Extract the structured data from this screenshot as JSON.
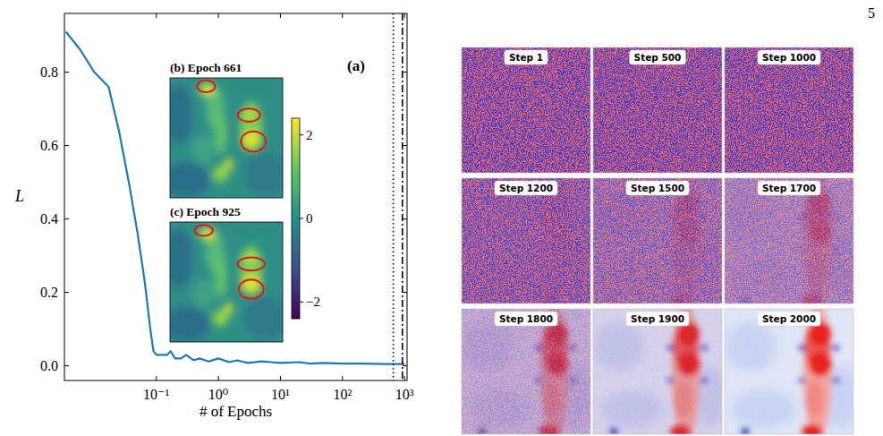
{
  "page_number": "5",
  "chart_data": {
    "type": "line",
    "panel_label": "(a)",
    "x_label": "# of Epochs",
    "y_label": "L",
    "log": "x",
    "grid": false,
    "xlim": [
      0.0033,
      1100
    ],
    "ylim": [
      -0.04,
      0.96
    ],
    "xticks": [
      {
        "value": 0.1,
        "label": "10⁻¹"
      },
      {
        "value": 1,
        "label": "10⁰"
      },
      {
        "value": 10,
        "label": "10¹"
      },
      {
        "value": 100,
        "label": "10²"
      },
      {
        "value": 1000,
        "label": "10³"
      }
    ],
    "yticks": [
      {
        "value": 0,
        "label": "0.0"
      },
      {
        "value": 0.2,
        "label": "0.2"
      },
      {
        "value": 0.4,
        "label": "0.4"
      },
      {
        "value": 0.6,
        "label": "0.6"
      },
      {
        "value": 0.8,
        "label": "0.8"
      }
    ],
    "series": [
      {
        "type": "line",
        "color": "#1f77b4",
        "x": [
          0.0035,
          0.006,
          0.01,
          0.017,
          0.025,
          0.037,
          0.05,
          0.065,
          0.08,
          0.09,
          0.1,
          0.12,
          0.15,
          0.17,
          0.2,
          0.25,
          0.3,
          0.4,
          0.5,
          0.7,
          1,
          1.5,
          2,
          3,
          5,
          7,
          10,
          20,
          30,
          50,
          100,
          200,
          500,
          1000
        ],
        "values": [
          0.91,
          0.86,
          0.8,
          0.76,
          0.64,
          0.49,
          0.36,
          0.23,
          0.1,
          0.04,
          0.03,
          0.03,
          0.03,
          0.04,
          0.02,
          0.02,
          0.03,
          0.015,
          0.02,
          0.012,
          0.02,
          0.01,
          0.015,
          0.008,
          0.012,
          0.01,
          0.008,
          0.01,
          0.006,
          0.008,
          0.006,
          0.006,
          0.005,
          0.005
        ]
      },
      {
        "type": "vline",
        "color": "#000000",
        "line_style": "dotted",
        "x": [
          661
        ]
      },
      {
        "type": "vline",
        "color": "#000000",
        "line_style": "dashdot",
        "x": [
          925
        ]
      }
    ],
    "insets": [
      {
        "title": "(b) Epoch 661"
      },
      {
        "title": "(c) Epoch 925"
      }
    ],
    "colorbar": {
      "range": [
        -2.4,
        2.4
      ],
      "ticks": [
        {
          "value": -2,
          "label": "−2"
        },
        0,
        2
      ]
    }
  },
  "denoising_panels": {
    "titles": [
      "Step 1",
      "Step 500",
      "Step 1000",
      "Step 1200",
      "Step 1500",
      "Step 1700",
      "Step 1800",
      "Step 1900",
      "Step 2000"
    ]
  }
}
